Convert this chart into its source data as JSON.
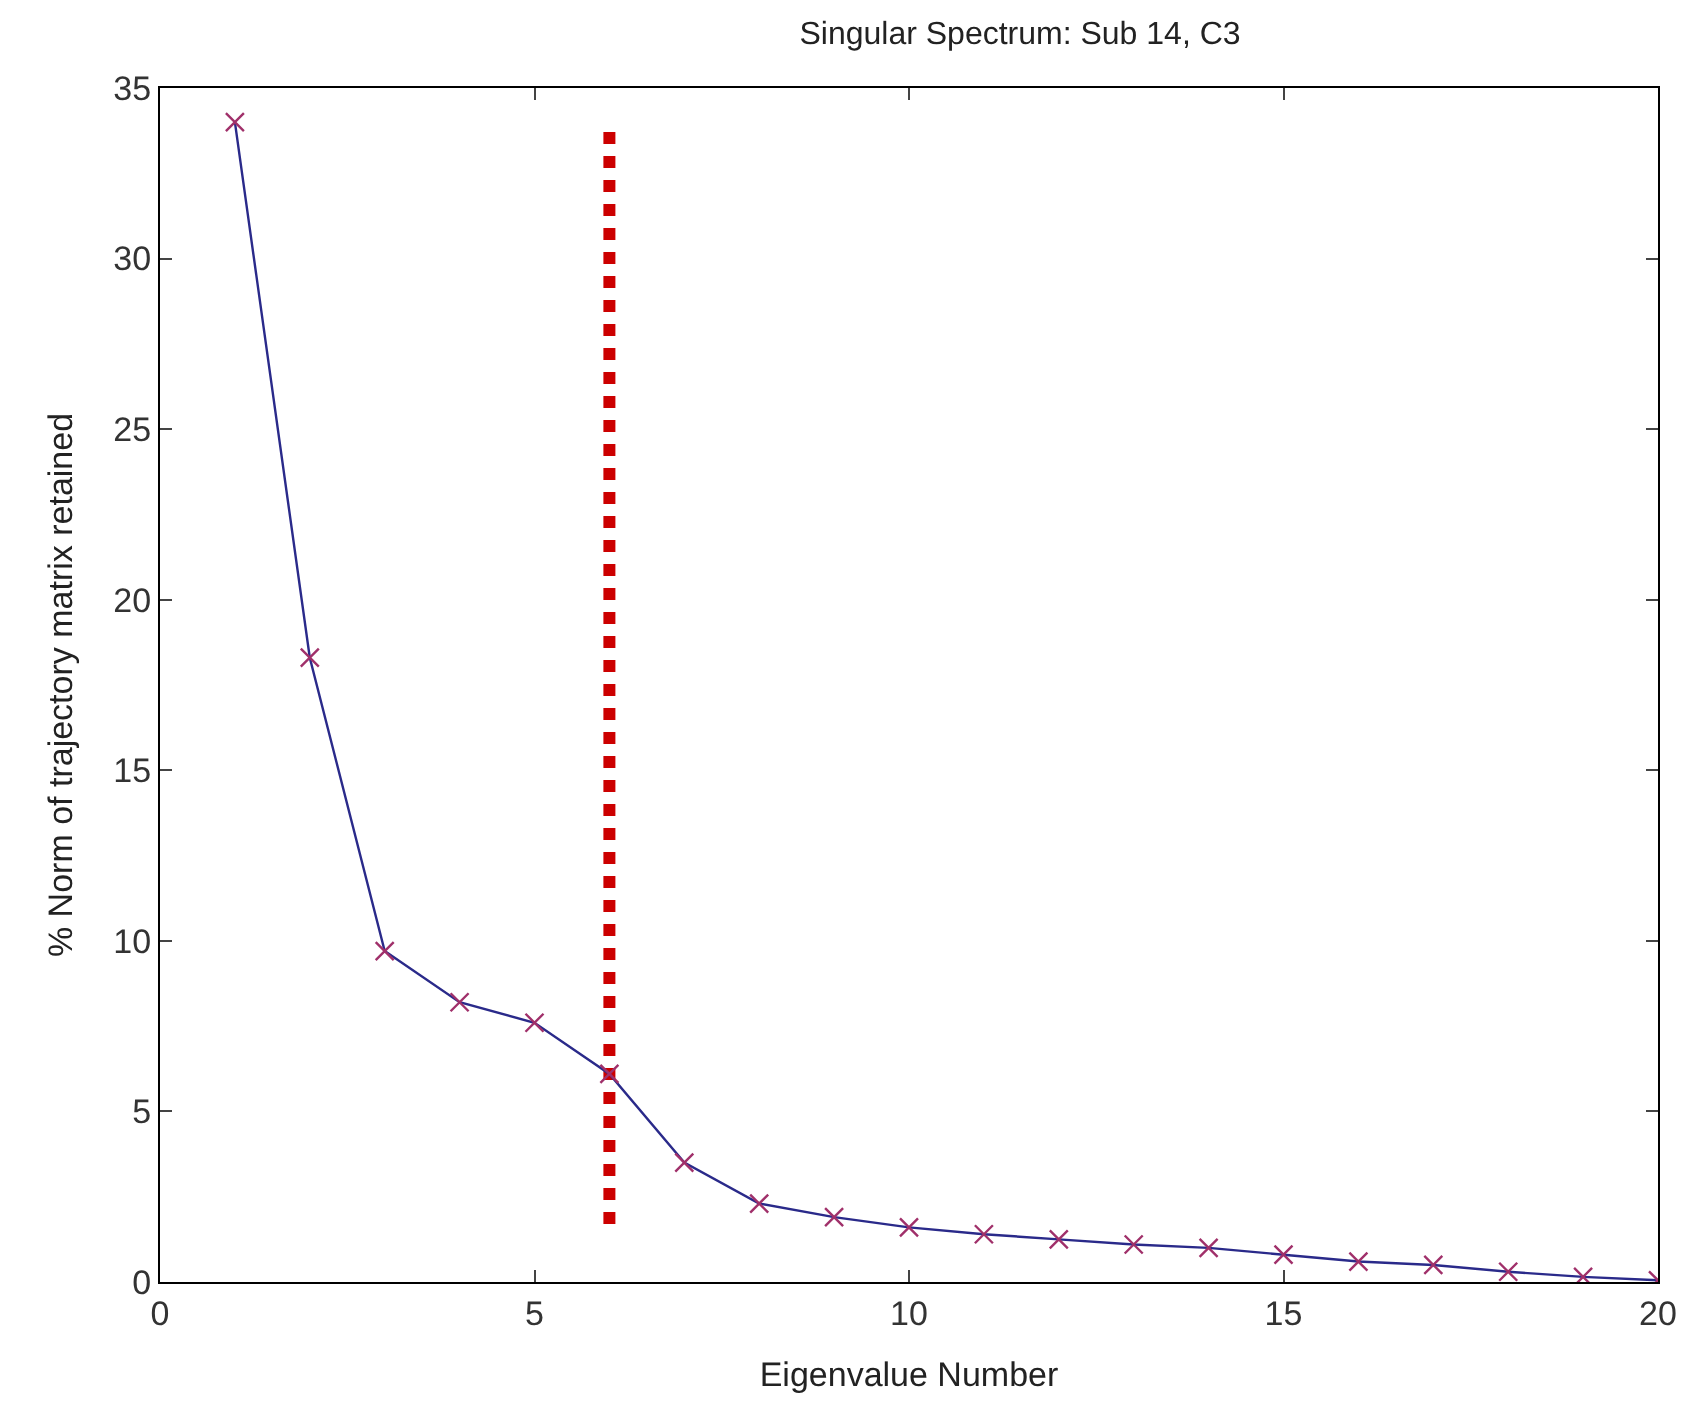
{
  "chart_data": {
    "type": "line",
    "title": "Singular Spectrum: Sub 14, C3",
    "xlabel": "Eigenvalue Number",
    "ylabel": "% Norm of trajectory matrix retained",
    "x": [
      1,
      2,
      3,
      4,
      5,
      6,
      7,
      8,
      9,
      10,
      11,
      12,
      13,
      14,
      15,
      16,
      17,
      18,
      19,
      20
    ],
    "series": [
      {
        "color": "#2a2a8a",
        "marker": "cross",
        "line_style": "solid",
        "values": [
          34.0,
          18.3,
          9.7,
          8.2,
          7.6,
          6.1,
          3.5,
          2.3,
          1.9,
          1.6,
          1.4,
          1.25,
          1.1,
          1.0,
          0.8,
          0.6,
          0.5,
          0.3,
          0.15,
          0.05
        ]
      },
      {
        "type": "line",
        "color": "#cc0000",
        "marker": "none",
        "line_style": "dotted",
        "x": [
          6,
          6
        ],
        "values": [
          1.7,
          33.8
        ]
      }
    ],
    "xlim": [
      0,
      20
    ],
    "xticks": [
      0,
      5,
      10,
      15,
      20
    ],
    "ylim": [
      0,
      35
    ],
    "yticks": [
      0,
      5,
      10,
      15,
      20,
      25,
      30,
      35
    ]
  }
}
